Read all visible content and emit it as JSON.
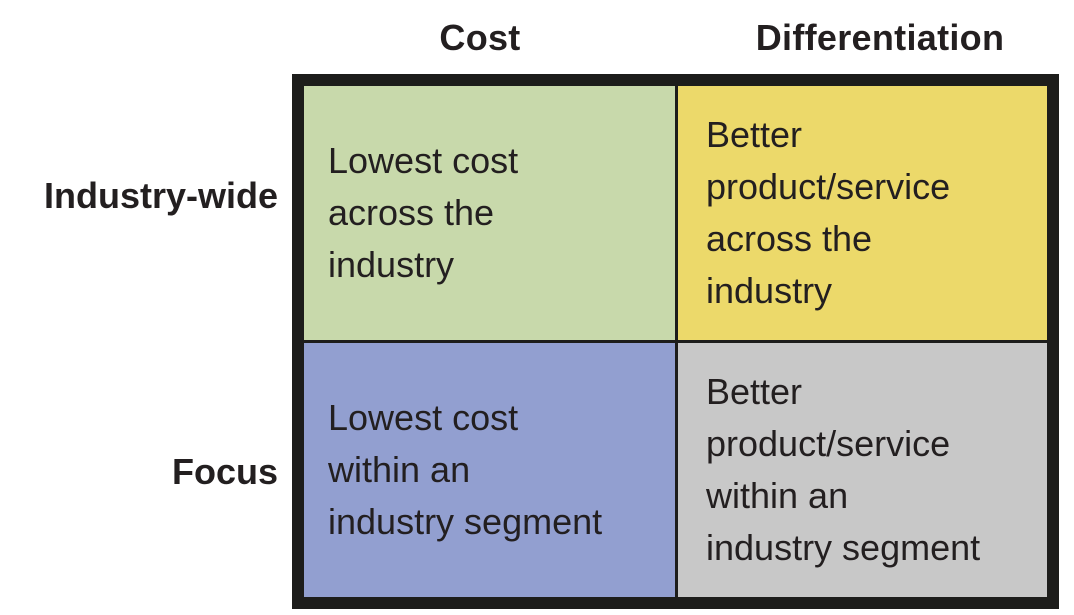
{
  "columns": {
    "cost": "Cost",
    "differentiation": "Differentiation"
  },
  "rows": {
    "industry_wide": "Industry-wide",
    "focus": "Focus"
  },
  "cells": {
    "cost_industry_wide": "Lowest cost\nacross the\nindustry",
    "differentiation_industry_wide": "Better\nproduct/service\nacross the\nindustry",
    "cost_focus": "Lowest cost\nwithin an\nindustry segment",
    "differentiation_focus": "Better\nproduct/service\nwithin an\nindustry segment"
  },
  "colors": {
    "cost_industry_wide": "#c8d9ab",
    "differentiation_industry_wide": "#ecd96a",
    "cost_focus": "#929fd0",
    "differentiation_focus": "#c8c8c8",
    "border": "#1d1d1b"
  }
}
